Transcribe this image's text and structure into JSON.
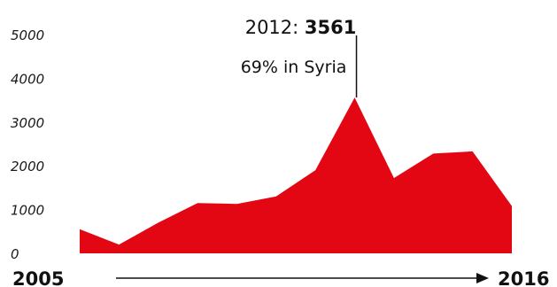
{
  "chart_data": {
    "type": "area",
    "x": [
      2005,
      2006,
      2007,
      2008,
      2009,
      2010,
      2011,
      2012,
      2013,
      2014,
      2015,
      2016
    ],
    "values": [
      550,
      200,
      700,
      1150,
      1130,
      1300,
      1900,
      3561,
      1720,
      2280,
      2330,
      1080
    ],
    "yticks": [
      "0",
      "1000",
      "2000",
      "3000",
      "4000",
      "5000"
    ],
    "ylim": [
      0,
      5000
    ],
    "xlim": [
      2005,
      2016
    ],
    "x_start_label": "2005",
    "x_end_label": "2016",
    "fill_color": "#e30613",
    "annotation": {
      "x": 2012,
      "prefix": "2012: ",
      "value": "3561",
      "note": "69% in Syria"
    }
  }
}
